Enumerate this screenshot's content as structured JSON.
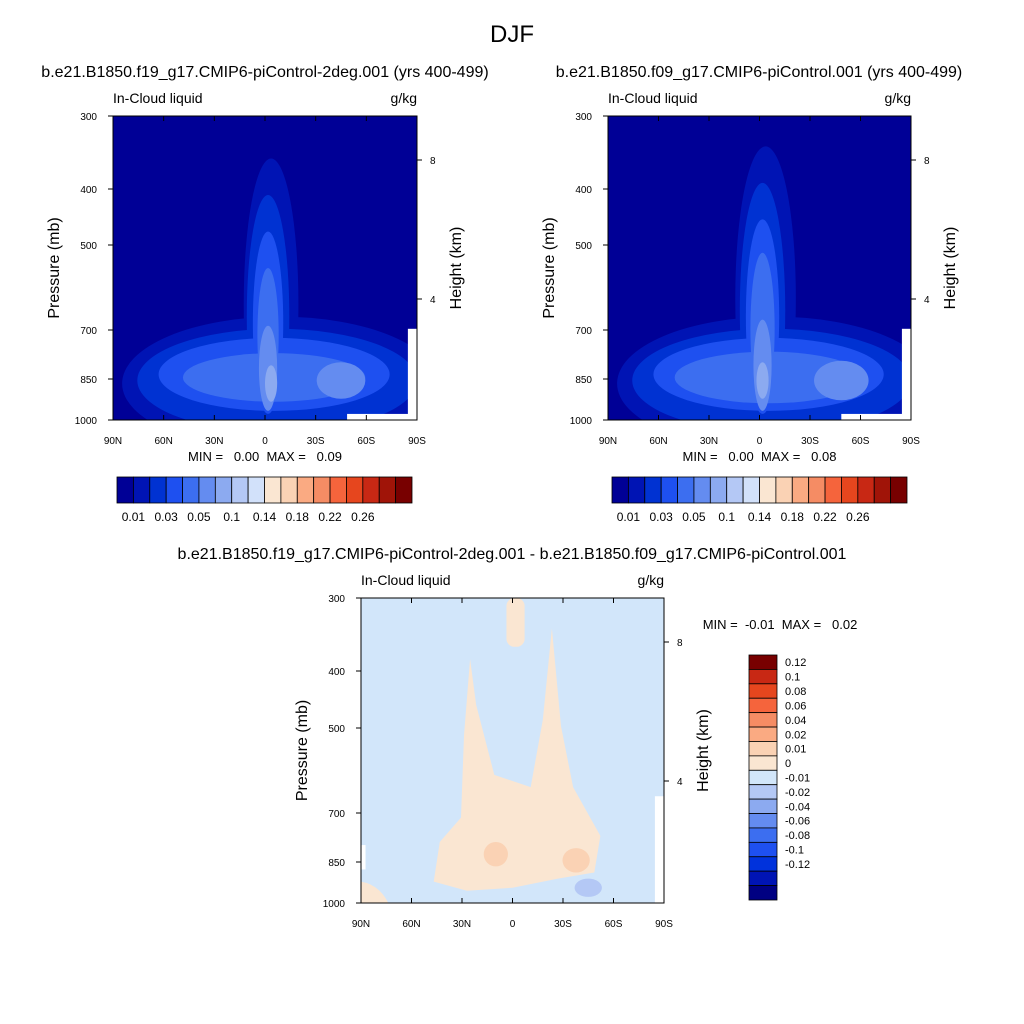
{
  "figure": {
    "title": "DJF"
  },
  "colors": {
    "abs_levels": [
      "#000096",
      "#0014b4",
      "#0032d2",
      "#1e50f0",
      "#3c6ef0",
      "#648cf0",
      "#8caaf0",
      "#b4c8f5",
      "#d2e1fa",
      "#fae6d2",
      "#fad2b4",
      "#faaa82",
      "#f58c64",
      "#f5643c",
      "#e6461e",
      "#c82814",
      "#a01408",
      "#780000"
    ],
    "diff_levels": [
      "#000082",
      "#0014b4",
      "#0032dc",
      "#1e50f0",
      "#3c6ef0",
      "#648cf0",
      "#8caaf0",
      "#b4c8f5",
      "#d2e6fa",
      "#fae6d2",
      "#fad2b4",
      "#faaa82",
      "#f58c64",
      "#f5643c",
      "#e6461e",
      "#c82814",
      "#780000"
    ]
  },
  "chart_data": [
    {
      "type": "heatmap",
      "id": "panel1",
      "title": "b.e21.B1850.f19_g17.CMIP6-piControl-2deg.001 (yrs 400-499)",
      "left_string": "In-Cloud liquid",
      "right_string": "g/kg",
      "ylabel": "Pressure (mb)",
      "y2label": "Height (km)",
      "xticks": [
        "90N",
        "60N",
        "30N",
        "0",
        "30S",
        "60S",
        "90S"
      ],
      "yticks": [
        "300",
        "400",
        "500",
        "700",
        "850",
        "1000"
      ],
      "y2ticks": [
        "8",
        "4"
      ],
      "stats": "MIN =   0.00  MAX =   0.09",
      "colorbar": {
        "labels": [
          "0.01",
          "0.03",
          "0.05",
          "0.1",
          "0.14",
          "0.18",
          "0.22",
          "0.26"
        ]
      },
      "ylim": [
        1000,
        300
      ],
      "xlim": [
        90,
        -90
      ]
    },
    {
      "type": "heatmap",
      "id": "panel2",
      "title": "b.e21.B1850.f09_g17.CMIP6-piControl.001 (yrs 400-499)",
      "left_string": "In-Cloud liquid",
      "right_string": "g/kg",
      "ylabel": "Pressure (mb)",
      "y2label": "Height (km)",
      "xticks": [
        "90N",
        "60N",
        "30N",
        "0",
        "30S",
        "60S",
        "90S"
      ],
      "yticks": [
        "300",
        "400",
        "500",
        "700",
        "850",
        "1000"
      ],
      "y2ticks": [
        "8",
        "4"
      ],
      "stats": "MIN =   0.00  MAX =   0.08",
      "colorbar": {
        "labels": [
          "0.01",
          "0.03",
          "0.05",
          "0.1",
          "0.14",
          "0.18",
          "0.22",
          "0.26"
        ]
      },
      "ylim": [
        1000,
        300
      ],
      "xlim": [
        90,
        -90
      ]
    },
    {
      "type": "heatmap",
      "id": "panel3",
      "title": "b.e21.B1850.f19_g17.CMIP6-piControl-2deg.001 - b.e21.B1850.f09_g17.CMIP6-piControl.001",
      "left_string": "In-Cloud liquid",
      "right_string": "g/kg",
      "ylabel": "Pressure (mb)",
      "y2label": "Height (km)",
      "xticks": [
        "90N",
        "60N",
        "30N",
        "0",
        "30S",
        "60S",
        "90S"
      ],
      "yticks": [
        "300",
        "400",
        "500",
        "700",
        "850",
        "1000"
      ],
      "y2ticks": [
        "8",
        "4"
      ],
      "stats": "MIN =  -0.01  MAX =   0.02",
      "colorbar": {
        "labels": [
          "0.12",
          "0.1",
          "0.08",
          "0.06",
          "0.04",
          "0.02",
          "0.01",
          "0",
          "-0.01",
          "-0.02",
          "-0.04",
          "-0.06",
          "-0.08",
          "-0.1",
          "-0.12"
        ]
      },
      "ylim": [
        1000,
        300
      ],
      "xlim": [
        90,
        -90
      ]
    }
  ]
}
